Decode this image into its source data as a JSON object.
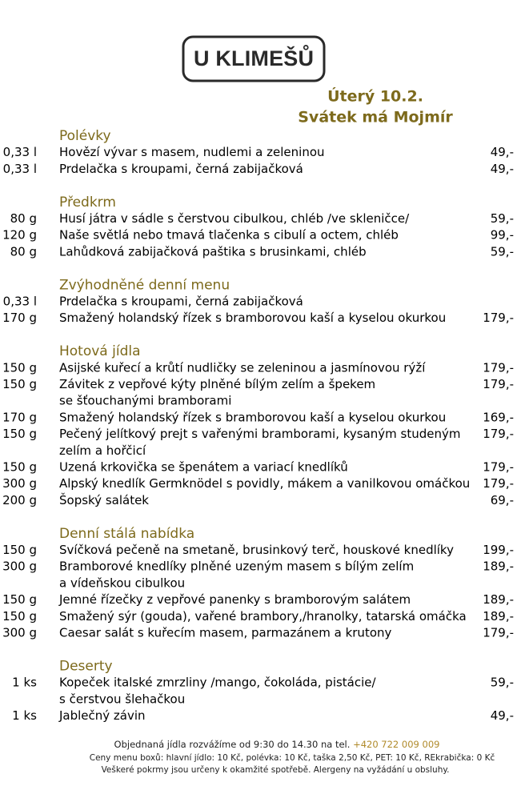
{
  "header": {
    "logo": "U KLIMEŠŮ",
    "date": "Úterý 10.2.",
    "nameday": "Svátek má Mojmír"
  },
  "sections": [
    {
      "title": "Polévky",
      "items": [
        {
          "qty": "0,33 l",
          "lines": [
            "Hovězí vývar s masem, nudlemi a zeleninou"
          ],
          "price": "49,-"
        },
        {
          "qty": "0,33 l",
          "lines": [
            "Prdelačka s kroupami, černá zabijačková"
          ],
          "price": "49,-"
        }
      ]
    },
    {
      "title": "Předkrm",
      "items": [
        {
          "qty": "80 g",
          "lines": [
            "Husí játra v sádle s čerstvou cibulkou, chléb /ve skleničce/"
          ],
          "price": "59,-"
        },
        {
          "qty": "120 g",
          "lines": [
            "Naše světlá nebo tmavá tlačenka s cibulí a octem, chléb"
          ],
          "price": "99,-"
        },
        {
          "qty": "80 g",
          "lines": [
            "Lahůdková zabijačková paštika s brusinkami, chléb"
          ],
          "price": "59,-"
        }
      ]
    },
    {
      "title": "Zvýhodněné denní menu",
      "items": [
        {
          "qty": "0,33 l",
          "lines": [
            "Prdelačka s kroupami, černá zabijačková"
          ]
        },
        {
          "qty": "170 g",
          "lines": [
            "Smažený holandský řízek s bramborovou kaší a kyselou okurkou"
          ],
          "price": "179,-"
        }
      ]
    },
    {
      "title": "Hotová jídla",
      "items": [
        {
          "qty": "150 g",
          "lines": [
            "Asijské kuřecí a krůtí nudličky se zeleninou a jasmínovou rýží"
          ],
          "price": "179,-"
        },
        {
          "qty": "150 g",
          "lines": [
            "Závitek z vepřové kýty plněné bílým zelím a špekem",
            "se šťouchanými bramborami"
          ],
          "price": "179,-"
        },
        {
          "qty": "170 g",
          "lines": [
            "Smažený holandský řízek s bramborovou kaší a kyselou okurkou"
          ],
          "price": "169,-"
        },
        {
          "qty": "150 g",
          "lines": [
            "Pečený jelítkový prejt s vařenými bramborami, kysaným studeným",
            "zelím a hořčicí"
          ],
          "price": "179,-"
        },
        {
          "qty": "150 g",
          "lines": [
            "Uzená krkovička se špenátem a variací knedlíků"
          ],
          "price": "179,-"
        },
        {
          "qty": "300 g",
          "lines": [
            "Alpský knedlík Germknödel s povidly, mákem a vanilkovou omáčkou"
          ],
          "price": "179,-"
        },
        {
          "qty": "200 g",
          "lines": [
            "Šopský salátek"
          ],
          "price": "69,-"
        }
      ]
    },
    {
      "title": "Denní stálá nabídka",
      "items": [
        {
          "qty": "150 g",
          "lines": [
            "Svíčková pečeně na smetaně, brusinkový terč, houskové knedlíky"
          ],
          "price": "199,-"
        },
        {
          "qty": "300 g",
          "lines": [
            "Bramborové knedlíky plněné uzeným masem s bílým zelím",
            "a vídeňskou cibulkou"
          ],
          "price": "189,-"
        },
        {
          "qty": "150 g",
          "lines": [
            "Jemné řízečky z vepřové panenky s bramborovým salátem"
          ],
          "price": "189,-"
        },
        {
          "qty": "150 g",
          "lines": [
            "Smažený sýr (gouda), vařené brambory,/hranolky, tatarská omáčka"
          ],
          "price": "189,-"
        },
        {
          "qty": "300 g",
          "lines": [
            "Caesar salát s kuřecím masem, parmazánem a krutony"
          ],
          "price": "179,-"
        }
      ]
    },
    {
      "title": "Deserty",
      "items": [
        {
          "qty": "1 ks",
          "lines": [
            "Kopeček italské zmrzliny /mango, čokoláda, pistácie/",
            "s čerstvou šlehačkou"
          ],
          "price": "59,-"
        },
        {
          "qty": "1 ks",
          "lines": [
            "Jablečný závin"
          ],
          "price": "49,-"
        }
      ]
    }
  ],
  "footer": {
    "delivery": "Objednaná jídla rozvážíme od 9:30 do 14.30 na tel.",
    "phone": "+420 722 009 009",
    "box_prices": "Ceny menu boxů: hlavní jídlo: 10 Kč, polévka: 10 Kč, taška 2,50 Kč, PET: 10 Kč, REkrabička: 0 Kč",
    "note": "Veškeré pokrmy jsou určeny k okamžité spotřebě. Alergeny na vyžádání u obsluhy."
  }
}
